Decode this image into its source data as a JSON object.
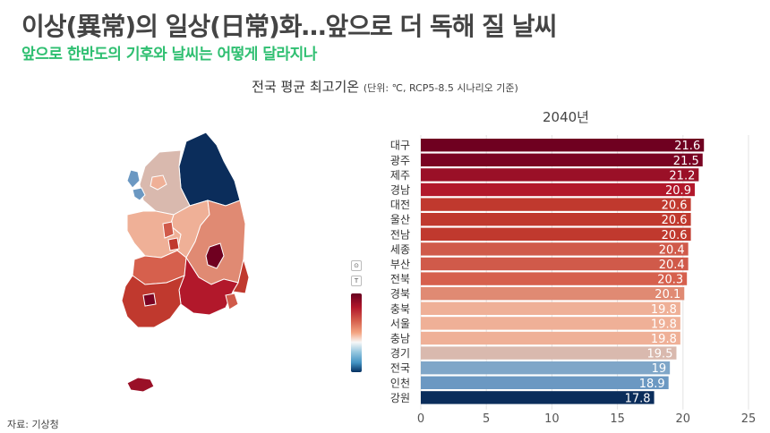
{
  "header": {
    "headline": "이상(異常)의 일상(日常)화…앞으로 더 독해 질 날씨",
    "subhead": "앞으로 한반도의 기후와 날씨는 어떻게 달라지나"
  },
  "chart_title": {
    "main": "전국 평균 최고기온",
    "note": "(단위: ℃, RCP5-8.5 시나리오 기준)"
  },
  "source": "자료: 기상청",
  "chart_data": {
    "type": "bar",
    "orientation": "horizontal",
    "subtitle": "2040년",
    "categories": [
      "대구",
      "광주",
      "제주",
      "경남",
      "대전",
      "울산",
      "전남",
      "세종",
      "부산",
      "전북",
      "경북",
      "충북",
      "서울",
      "충남",
      "경기",
      "전국",
      "인천",
      "강원"
    ],
    "values": [
      21.6,
      21.5,
      21.2,
      20.9,
      20.6,
      20.6,
      20.6,
      20.4,
      20.4,
      20.3,
      20.1,
      19.8,
      19.8,
      19.8,
      19.5,
      19,
      18.9,
      17.8
    ],
    "value_labels": [
      "21.6",
      "21.5",
      "21.2",
      "20.9",
      "20.6",
      "20.6",
      "20.6",
      "20.4",
      "20.4",
      "20.3",
      "20.1",
      "19.8",
      "19.8",
      "19.8",
      "19.5",
      "19",
      "18.9",
      "17.8"
    ],
    "colors": [
      "#6f0020",
      "#7a0322",
      "#9a1027",
      "#b2182b",
      "#c0392e",
      "#c0392e",
      "#c0392e",
      "#d05a4a",
      "#d05a4a",
      "#d6604d",
      "#e08a73",
      "#efb097",
      "#efb097",
      "#efb097",
      "#d9b9ae",
      "#7fa6c8",
      "#6b98c2",
      "#0b2d5b"
    ],
    "xlim": [
      0,
      25
    ],
    "xticks": [
      0,
      5,
      10,
      15,
      20,
      25
    ],
    "xtick_labels": [
      "0",
      "5",
      "10",
      "15",
      "20",
      "25"
    ],
    "grid": true,
    "legend": "colorbar, left of bars"
  },
  "map": {
    "regions": [
      {
        "name": "강원",
        "color": "#0b2d5b"
      },
      {
        "name": "경기",
        "color": "#d9b9ae"
      },
      {
        "name": "서울",
        "color": "#efb097"
      },
      {
        "name": "인천",
        "color": "#6b98c2"
      },
      {
        "name": "충북",
        "color": "#efb097"
      },
      {
        "name": "충남",
        "color": "#efb097"
      },
      {
        "name": "세종",
        "color": "#d05a4a"
      },
      {
        "name": "대전",
        "color": "#c0392e"
      },
      {
        "name": "경북",
        "color": "#e08a73"
      },
      {
        "name": "대구",
        "color": "#6f0020"
      },
      {
        "name": "울산",
        "color": "#c0392e"
      },
      {
        "name": "전북",
        "color": "#d6604d"
      },
      {
        "name": "광주",
        "color": "#7a0322"
      },
      {
        "name": "전남",
        "color": "#c0392e"
      },
      {
        "name": "경남",
        "color": "#b2182b"
      },
      {
        "name": "부산",
        "color": "#d05a4a"
      },
      {
        "name": "제주",
        "color": "#9a1027"
      }
    ]
  },
  "legend_controls": [
    {
      "icon": "reset-view-icon",
      "glyph": "⊙"
    },
    {
      "icon": "text-toggle-icon",
      "glyph": "T"
    }
  ]
}
